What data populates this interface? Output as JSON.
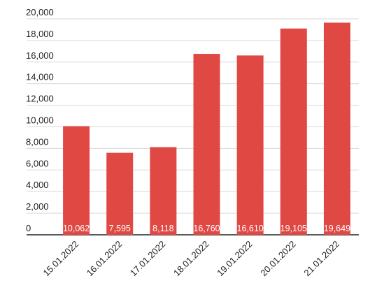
{
  "chart_data": {
    "type": "bar",
    "categories": [
      "15.01.2022",
      "16.01.2022",
      "17.01.2022",
      "18.01.2022",
      "19.01.2022",
      "20.01.2022",
      "21.01.2022"
    ],
    "values": [
      10062,
      7595,
      8118,
      16760,
      16610,
      19105,
      19649
    ],
    "value_labels": [
      "10,062",
      "7,595",
      "8,118",
      "16,760",
      "16,610",
      "19,105",
      "19,649"
    ],
    "color": "#e04844",
    "ylim": [
      0,
      20000
    ],
    "yticks": [
      0,
      {
        "value": 2000,
        "label": "2,000"
      },
      {
        "value": 4000,
        "label": "4,000"
      },
      {
        "value": 6000,
        "label": "6,000"
      },
      {
        "value": 8000,
        "label": "8,000"
      },
      {
        "value": 10000,
        "label": "10,000"
      },
      {
        "value": 12000,
        "label": "12,000"
      },
      {
        "value": 14000,
        "label": "14,000"
      },
      {
        "value": 16000,
        "label": "16,000"
      },
      {
        "value": 18000,
        "label": "18,000"
      },
      {
        "value": 20000,
        "label": "20,000"
      }
    ],
    "grid": true
  }
}
